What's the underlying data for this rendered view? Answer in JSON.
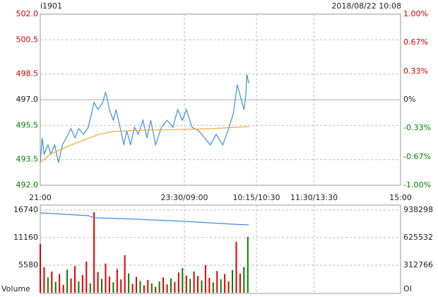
{
  "chart_data": [
    {
      "type": "line",
      "title": "i1901",
      "subtitle": "2018/08/22 10:08",
      "xlim": [
        0,
        375
      ],
      "xticks": [
        {
          "value": 0,
          "label": "21:00"
        },
        {
          "value": 150,
          "label": "23:30/09:00"
        },
        {
          "value": 225,
          "label": "10:15/10:30"
        },
        {
          "value": 285,
          "label": "11:30/13:30"
        },
        {
          "value": 375,
          "label": "15:00"
        }
      ],
      "ylim": [
        492,
        502
      ],
      "yticks": [
        {
          "value": 502,
          "label": "502.0"
        },
        500.5,
        498.5,
        {
          "value": 497,
          "label": "497.0"
        },
        495.5,
        493.5,
        {
          "value": 492,
          "label": "492.0"
        }
      ],
      "y2lim": [
        -1,
        1
      ],
      "y2ticks": [
        {
          "value": 1,
          "label": "1.00%"
        },
        {
          "value": 0.67,
          "label": "0.67%"
        },
        {
          "value": 0.33,
          "label": "0.33%"
        },
        {
          "value": 0,
          "label": "0%"
        },
        {
          "value": -0.33,
          "label": "-0.33%"
        },
        {
          "value": -0.67,
          "label": "-0.67%"
        },
        {
          "value": -1,
          "label": "-1.00%"
        }
      ],
      "grid": true,
      "series": [
        {
          "color": "#3d8fdc",
          "x": [
            0,
            2,
            4,
            8,
            11,
            15,
            19,
            23,
            27,
            32,
            36,
            40,
            45,
            50,
            56,
            60,
            65,
            68,
            72,
            76,
            79,
            83,
            87,
            90,
            94,
            98,
            102,
            107,
            111,
            115,
            120,
            126,
            132,
            138,
            143,
            148,
            152,
            158,
            165,
            171,
            177,
            183,
            190,
            196,
            201,
            205,
            209,
            212,
            214,
            215,
            217
          ],
          "values": [
            493.32,
            494.77,
            493.82,
            494.36,
            493.82,
            494.36,
            493.32,
            494.36,
            494.77,
            495.31,
            494.77,
            495.31,
            494.98,
            495.39,
            496.83,
            496.42,
            496.83,
            497.45,
            496.42,
            495.8,
            496.42,
            495.39,
            494.36,
            495.18,
            494.36,
            495.39,
            494.98,
            495.8,
            494.77,
            495.8,
            494.36,
            495.39,
            495.8,
            495.39,
            496.42,
            495.8,
            496.42,
            495.39,
            495.18,
            494.77,
            494.36,
            494.98,
            494.36,
            495.31,
            496.21,
            497.87,
            497.04,
            496.42,
            497.25,
            498.49,
            497.95
          ]
        },
        {
          "color": "#f0a830",
          "x": [
            0,
            10,
            32,
            61,
            76,
            105,
            149,
            179,
            217
          ],
          "values": [
            493.32,
            493.8,
            494.36,
            494.98,
            495.14,
            495.22,
            495.26,
            495.31,
            495.43
          ]
        }
      ]
    },
    {
      "type": "bar",
      "xlim": [
        0,
        375
      ],
      "ylim": [
        0,
        16740
      ],
      "yticks": [
        5580,
        11160,
        16740
      ],
      "y2lim": [
        0,
        938298
      ],
      "y2ticks": [
        312766,
        625532,
        938298
      ],
      "grid": true,
      "series": [
        {
          "name": "Volume",
          "x": [
            0,
            4,
            8,
            12,
            16,
            20,
            24,
            28,
            32,
            36,
            40,
            44,
            48,
            52,
            56,
            60,
            64,
            68,
            72,
            76,
            80,
            84,
            88,
            92,
            96,
            100,
            104,
            108,
            112,
            116,
            120,
            124,
            128,
            132,
            136,
            140,
            144,
            148,
            152,
            156,
            160,
            164,
            168,
            172,
            176,
            180,
            184,
            188,
            192,
            196,
            200,
            204,
            208,
            212,
            216
          ],
          "values": [
            9900,
            5200,
            3100,
            4300,
            2200,
            3800,
            1600,
            4700,
            2900,
            5400,
            2300,
            3600,
            6300,
            1900,
            16300,
            4200,
            2800,
            5900,
            3300,
            2100,
            4800,
            2700,
            7600,
            3900,
            1800,
            3200,
            2400,
            1500,
            2600,
            1900,
            1200,
            2300,
            3100,
            1700,
            2900,
            2200,
            4100,
            5000,
            3500,
            2800,
            4300,
            3400,
            2500,
            5600,
            3000,
            2100,
            4400,
            2700,
            3800,
            2300,
            4600,
            10300,
            3900,
            5200,
            11300
          ],
          "colors": [
            "#e00000",
            "#e00000",
            "#008000",
            "#e00000",
            "#008000",
            "#e00000",
            "#e00000",
            "#008000",
            "#e00000",
            "#e00000",
            "#008000",
            "#e00000",
            "#e00000",
            "#008000",
            "#e00000",
            "#e00000",
            "#008000",
            "#e00000",
            "#e00000",
            "#008000",
            "#e00000",
            "#e00000",
            "#e00000",
            "#008000",
            "#e00000",
            "#e00000",
            "#008000",
            "#e00000",
            "#e00000",
            "#008000",
            "#e00000",
            "#008000",
            "#e00000",
            "#e00000",
            "#008000",
            "#e00000",
            "#e00000",
            "#008000",
            "#e00000",
            "#008000",
            "#e00000",
            "#e00000",
            "#008000",
            "#e00000",
            "#e00000",
            "#008000",
            "#e00000",
            "#008000",
            "#e00000",
            "#e00000",
            "#008000",
            "#e00000",
            "#e00000",
            "#008000",
            "#008000"
          ]
        },
        {
          "name": "OI",
          "axis": "y2",
          "color": "#3d8fdc",
          "x": [
            0,
            50,
            56,
            100,
            150,
            200,
            217
          ],
          "values": [
            906220,
            874140,
            850080,
            834043,
            809984,
            777907,
            769888
          ]
        }
      ]
    }
  ]
}
